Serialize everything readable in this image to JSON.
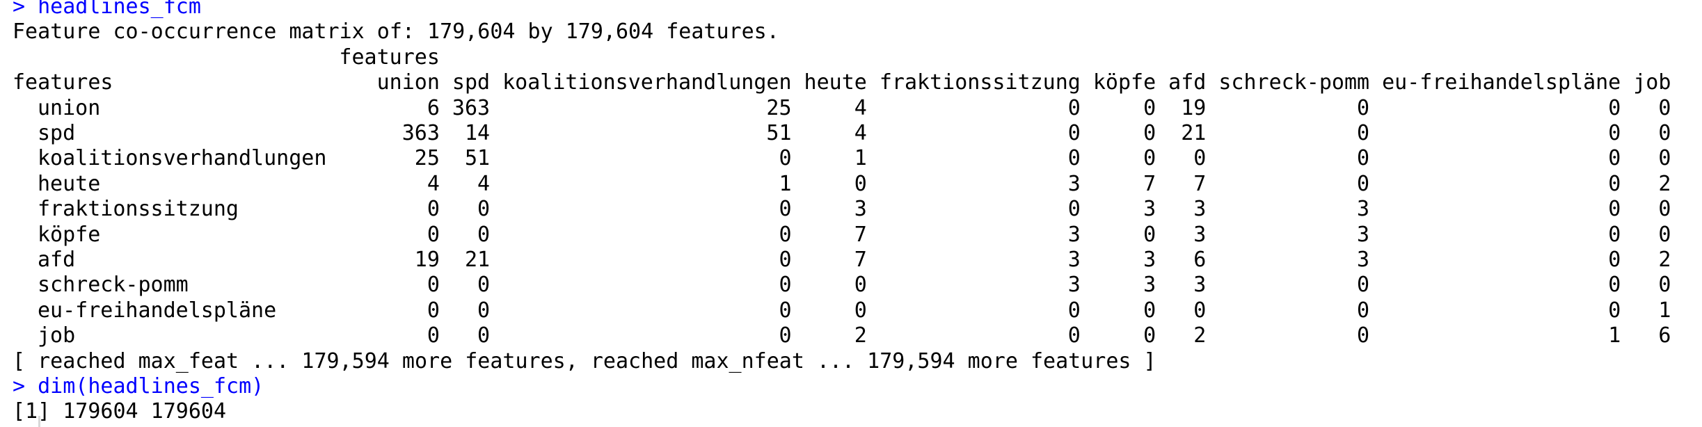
{
  "console": {
    "prompt": ">",
    "command1": "headlines_fcm",
    "summary": "Feature co-occurrence matrix of: 179,604 by 179,604 features.",
    "dim_label": "features",
    "row_dim_label": "features",
    "columns": [
      "union",
      "spd",
      "koalitionsverhandlungen",
      "heute",
      "fraktionssitzung",
      "köpfe",
      "afd",
      "schreck-pomm",
      "eu-freihandelspläne",
      "job"
    ],
    "rows": [
      {
        "name": "union",
        "values": [
          "6",
          "363",
          "25",
          "4",
          "0",
          "0",
          "19",
          "0",
          "0",
          "0"
        ]
      },
      {
        "name": "spd",
        "values": [
          "363",
          "14",
          "51",
          "4",
          "0",
          "0",
          "21",
          "0",
          "0",
          "0"
        ]
      },
      {
        "name": "koalitionsverhandlungen",
        "values": [
          "25",
          "51",
          "0",
          "1",
          "0",
          "0",
          "0",
          "0",
          "0",
          "0"
        ]
      },
      {
        "name": "heute",
        "values": [
          "4",
          "4",
          "1",
          "0",
          "3",
          "7",
          "7",
          "0",
          "0",
          "2"
        ]
      },
      {
        "name": "fraktionssitzung",
        "values": [
          "0",
          "0",
          "0",
          "3",
          "0",
          "3",
          "3",
          "3",
          "0",
          "0"
        ]
      },
      {
        "name": "köpfe",
        "values": [
          "0",
          "0",
          "0",
          "7",
          "3",
          "0",
          "3",
          "3",
          "0",
          "0"
        ]
      },
      {
        "name": "afd",
        "values": [
          "19",
          "21",
          "0",
          "7",
          "3",
          "3",
          "6",
          "3",
          "0",
          "2"
        ]
      },
      {
        "name": "schreck-pomm",
        "values": [
          "0",
          "0",
          "0",
          "0",
          "3",
          "3",
          "3",
          "0",
          "0",
          "0"
        ]
      },
      {
        "name": "eu-freihandelspläne",
        "values": [
          "0",
          "0",
          "0",
          "0",
          "0",
          "0",
          "0",
          "0",
          "0",
          "1"
        ]
      },
      {
        "name": "job",
        "values": [
          "0",
          "0",
          "0",
          "2",
          "0",
          "0",
          "2",
          "0",
          "1",
          "6"
        ]
      }
    ],
    "truncation_note": "[ reached max_feat ... 179,594 more features, reached max_nfeat ... 179,594 more features ]",
    "command2": "dim(headlines_fcm)",
    "output2": "[1] 179604 179604"
  }
}
